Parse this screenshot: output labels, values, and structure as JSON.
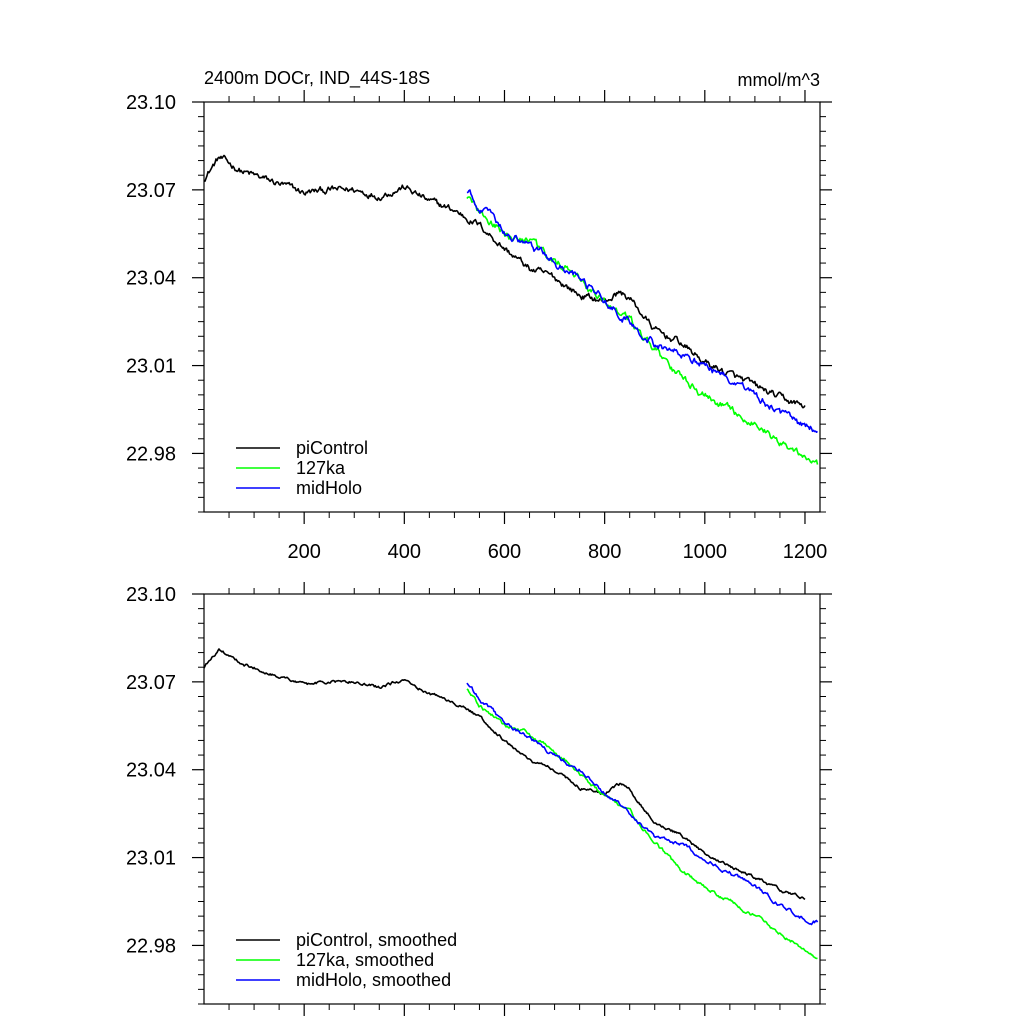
{
  "chart_data": [
    {
      "type": "line",
      "title": "2400m DOCr, IND_44S-18S",
      "units": "mmol/m^3",
      "xlim": [
        0,
        1230
      ],
      "ylim": [
        22.96,
        23.1
      ],
      "xticks": [
        200,
        400,
        600,
        800,
        1000,
        1200
      ],
      "xtick_labels": [
        "200",
        "400",
        "600",
        "800",
        "1000",
        "1200"
      ],
      "yticks": [
        22.98,
        23.01,
        23.04,
        23.07,
        23.1
      ],
      "ytick_labels": [
        "22.98",
        "23.01",
        "23.04",
        "23.07",
        "23.10"
      ],
      "legend_position": "bottom-left",
      "series": [
        {
          "name": "piControl",
          "color": "#000000",
          "noise": 0.0009,
          "x": [
            0,
            30,
            80,
            150,
            200,
            250,
            300,
            350,
            400,
            450,
            500,
            550,
            600,
            650,
            700,
            750,
            800,
            830,
            850,
            900,
            950,
            1000,
            1050,
            1100,
            1150,
            1200
          ],
          "y": [
            23.074,
            23.081,
            23.076,
            23.072,
            23.069,
            23.07,
            23.07,
            23.068,
            23.071,
            23.066,
            23.063,
            23.058,
            23.05,
            23.043,
            23.04,
            23.034,
            23.032,
            23.035,
            23.033,
            23.022,
            23.018,
            23.011,
            23.007,
            23.003,
            22.999,
            22.996
          ]
        },
        {
          "name": "127ka",
          "color": "#00ff00",
          "noise": 0.001,
          "x": [
            525,
            550,
            600,
            650,
            700,
            750,
            800,
            850,
            900,
            950,
            1000,
            1050,
            1100,
            1150,
            1200,
            1225
          ],
          "y": [
            23.068,
            23.062,
            23.055,
            23.052,
            23.046,
            23.039,
            23.031,
            23.026,
            23.015,
            23.006,
            23.0,
            22.995,
            22.99,
            22.984,
            22.979,
            22.976
          ]
        },
        {
          "name": "midHolo",
          "color": "#0000ff",
          "noise": 0.001,
          "x": [
            525,
            550,
            600,
            650,
            700,
            750,
            800,
            850,
            900,
            950,
            1000,
            1050,
            1100,
            1150,
            1200,
            1225
          ],
          "y": [
            23.07,
            23.064,
            23.056,
            23.051,
            23.045,
            23.04,
            23.032,
            23.025,
            23.017,
            23.015,
            23.01,
            23.005,
            23.0,
            22.994,
            22.989,
            22.988
          ]
        }
      ]
    },
    {
      "type": "line",
      "title": "",
      "units": "",
      "xlim": [
        0,
        1230
      ],
      "ylim": [
        22.96,
        23.1
      ],
      "xticks": [
        200,
        400,
        600,
        800,
        1000,
        1200
      ],
      "xtick_labels": [],
      "yticks": [
        22.98,
        23.01,
        23.04,
        23.07,
        23.1
      ],
      "ytick_labels": [
        "22.98",
        "23.01",
        "23.04",
        "23.07",
        "23.10"
      ],
      "legend_position": "bottom-left",
      "series": [
        {
          "name": "piControl, smoothed",
          "color": "#000000",
          "noise": 0.0004,
          "x": [
            0,
            30,
            80,
            150,
            200,
            250,
            300,
            350,
            400,
            450,
            500,
            550,
            600,
            650,
            700,
            750,
            800,
            830,
            850,
            900,
            950,
            1000,
            1050,
            1100,
            1150,
            1200
          ],
          "y": [
            23.075,
            23.081,
            23.076,
            23.072,
            23.069,
            23.07,
            23.07,
            23.068,
            23.071,
            23.066,
            23.063,
            23.058,
            23.05,
            23.043,
            23.04,
            23.034,
            23.032,
            23.035,
            23.033,
            23.022,
            23.018,
            23.011,
            23.007,
            23.003,
            22.999,
            22.996
          ]
        },
        {
          "name": "127ka, smoothed",
          "color": "#00ff00",
          "noise": 0.0005,
          "x": [
            525,
            550,
            600,
            650,
            700,
            750,
            800,
            850,
            900,
            950,
            1000,
            1050,
            1100,
            1150,
            1200,
            1225
          ],
          "y": [
            23.068,
            23.062,
            23.055,
            23.052,
            23.046,
            23.039,
            23.031,
            23.026,
            23.015,
            23.006,
            23.0,
            22.995,
            22.99,
            22.984,
            22.979,
            22.976
          ]
        },
        {
          "name": "midHolo, smoothed",
          "color": "#0000ff",
          "noise": 0.0005,
          "x": [
            525,
            550,
            600,
            650,
            700,
            750,
            800,
            850,
            900,
            950,
            1000,
            1050,
            1100,
            1150,
            1200,
            1225
          ],
          "y": [
            23.07,
            23.064,
            23.056,
            23.051,
            23.045,
            23.04,
            23.032,
            23.025,
            23.017,
            23.015,
            23.01,
            23.005,
            23.0,
            22.994,
            22.989,
            22.988
          ]
        }
      ]
    }
  ]
}
